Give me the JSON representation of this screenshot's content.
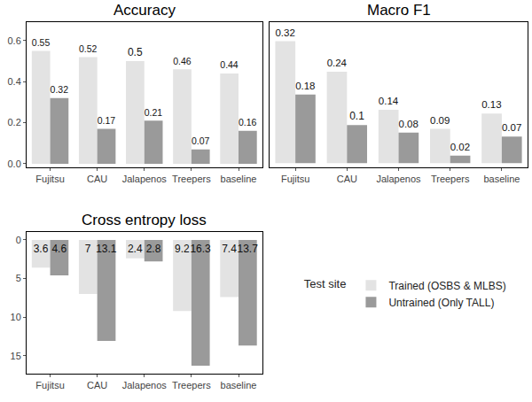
{
  "chart_data": [
    {
      "type": "bar",
      "title": "Accuracy",
      "categories": [
        "Fujitsu",
        "CAU",
        "Jalapenos",
        "Treepers",
        "baseline"
      ],
      "series": [
        {
          "name": "Trained (OSBS & MLBS)",
          "color": "#e3e3e3",
          "values": [
            0.55,
            0.52,
            0.5,
            0.46,
            0.44
          ]
        },
        {
          "name": "Untrained (Only TALL)",
          "color": "#9a9a9a",
          "values": [
            0.32,
            0.17,
            0.21,
            0.07,
            0.16
          ]
        }
      ],
      "ylim": [
        -0.016,
        0.69
      ],
      "yticks": [
        {
          "value": 0,
          "label": "0.0"
        },
        0.2,
        0.4,
        0.6
      ],
      "data_labels": true
    },
    {
      "type": "bar",
      "title": "Macro F1",
      "categories": [
        "Fujitsu",
        "CAU",
        "Jalapenos",
        "Treepers",
        "baseline"
      ],
      "series": [
        {
          "name": "Trained (OSBS & MLBS)",
          "color": "#e3e3e3",
          "values": [
            0.32,
            0.24,
            0.14,
            0.09,
            0.13
          ]
        },
        {
          "name": "Untrained (Only TALL)",
          "color": "#9a9a9a",
          "values": [
            0.18,
            0.1,
            0.08,
            0.02,
            0.07
          ]
        }
      ],
      "ylim": [
        -0.01,
        0.37
      ],
      "tick_labels": "x",
      "data_labels": true
    },
    {
      "type": "bar",
      "title": "Cross entropy loss",
      "categories": [
        "Fujitsu",
        "CAU",
        "Jalapenos",
        "Treepers",
        "baseline"
      ],
      "series": [
        {
          "name": "Trained (OSBS & MLBS)",
          "color": "#e3e3e3",
          "values": [
            3.6,
            7,
            2.4,
            9.2,
            7.4
          ]
        },
        {
          "name": "Untrained (Only TALL)",
          "color": "#9a9a9a",
          "values": [
            4.6,
            13.1,
            2.8,
            16.3,
            13.7
          ]
        }
      ],
      "ylim": [
        17.3,
        -1
      ],
      "yticks": [
        0,
        5,
        10,
        15
      ],
      "data_labels": true,
      "legend": "right",
      "legend_title": "Test site"
    }
  ]
}
